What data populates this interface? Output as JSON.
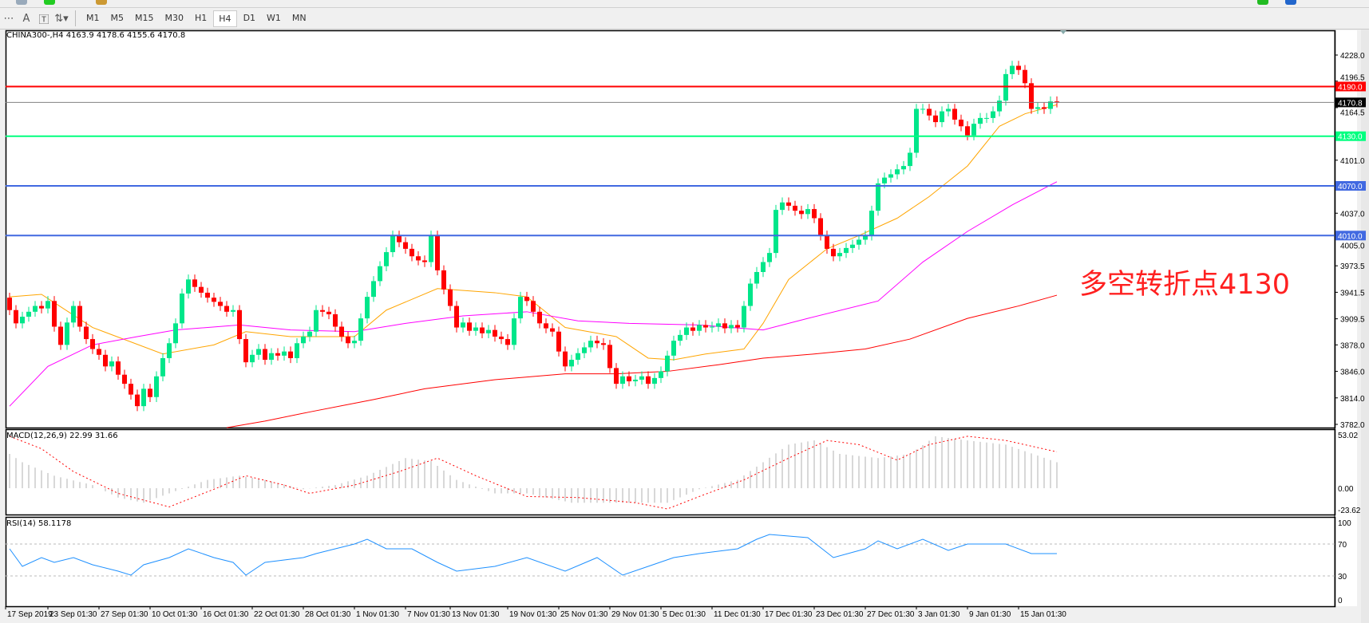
{
  "toolbar": {
    "tools": [
      "text-icon",
      "textbox-icon",
      "arrows-icon"
    ],
    "text_tool_label": "A",
    "timeframes": [
      "M1",
      "M5",
      "M15",
      "M30",
      "H1",
      "H4",
      "D1",
      "W1",
      "MN"
    ],
    "active_timeframe": "H4"
  },
  "chart_data": [
    {
      "type": "candlestick",
      "title": "CHINA300-,H4  4163.9 4178.6 4155.6 4170.8",
      "symbol": "CHINA300-",
      "timeframe": "H4",
      "last_ohlc": {
        "open": 4163.9,
        "high": 4178.6,
        "low": 4155.6,
        "close": 4170.8
      },
      "ylim": [
        3782.0,
        4228.0
      ],
      "y_ticks": [
        "4228.0",
        "4196.5",
        "4164.5",
        "4101.0",
        "4037.0",
        "4005.0",
        "3973.5",
        "3941.5",
        "3909.5",
        "3878.0",
        "3846.0",
        "3814.0",
        "3782.0"
      ],
      "x_tick_labels": [
        "17 Sep 2019",
        "23 Sep 01:30",
        "27 Sep 01:30",
        "10 Oct 01:30",
        "16 Oct 01:30",
        "22 Oct 01:30",
        "28 Oct 01:30",
        "1 Nov 01:30",
        "7 Nov 01:30",
        "13 Nov 01:30",
        "19 Nov 01:30",
        "25 Nov 01:30",
        "29 Nov 01:30",
        "5 Dec 01:30",
        "11 Dec 01:30",
        "17 Dec 01:30",
        "23 Dec 01:30",
        "27 Dec 01:30",
        "3 Jan 01:30",
        "9 Jan 01:30",
        "15 Jan 01:30"
      ],
      "first_open": 3935,
      "close": [
        3920,
        3904,
        3912,
        3918,
        3925,
        3922,
        3931,
        3900,
        3878,
        3905,
        3925,
        3900,
        3885,
        3873,
        3866,
        3852,
        3858,
        3842,
        3831,
        3818,
        3804,
        3825,
        3815,
        3840,
        3862,
        3880,
        3904,
        3940,
        3957,
        3948,
        3941,
        3935,
        3930,
        3925,
        3918,
        3920,
        3885,
        3857,
        3866,
        3873,
        3860,
        3868,
        3865,
        3870,
        3862,
        3880,
        3888,
        3894,
        3920,
        3918,
        3915,
        3900,
        3888,
        3880,
        3883,
        3910,
        3936,
        3955,
        3973,
        3990,
        4010,
        4002,
        3994,
        3985,
        3980,
        3978,
        4010,
        3968,
        3945,
        3925,
        3899,
        3905,
        3895,
        3899,
        3892,
        3896,
        3888,
        3885,
        3878,
        3910,
        3936,
        3931,
        3918,
        3904,
        3898,
        3894,
        3870,
        3852,
        3860,
        3868,
        3875,
        3883,
        3880,
        3878,
        3850,
        3831,
        3840,
        3834,
        3836,
        3840,
        3831,
        3838,
        3846,
        3865,
        3883,
        3890,
        3899,
        3895,
        3902,
        3899,
        3900,
        3904,
        3898,
        3902,
        3899,
        3925,
        3952,
        3966,
        3978,
        3989,
        4041,
        4050,
        4046,
        4040,
        4036,
        4042,
        4031,
        4010,
        3994,
        3985,
        3989,
        3995,
        3999,
        4005,
        4010,
        4040,
        4073,
        4080,
        4084,
        4090,
        4094,
        4110,
        4163,
        4163,
        4155,
        4147,
        4160,
        4163,
        4150,
        4142,
        4131,
        4145,
        4152,
        4152,
        4160,
        4173,
        4205,
        4215,
        4210,
        4194,
        4163,
        4165,
        4163,
        4172,
        4170.8
      ],
      "bull_color": "#00e68a",
      "bear_color": "#ff0000",
      "moving_averages": [
        {
          "color": "#ffa500",
          "points": [
            [
              0,
              3936
            ],
            [
              5,
              3939
            ],
            [
              13,
              3899
            ],
            [
              24,
              3867
            ],
            [
              32,
              3878
            ],
            [
              37,
              3894
            ],
            [
              44,
              3888
            ],
            [
              54,
              3888
            ],
            [
              59,
              3920
            ],
            [
              67,
              3946
            ],
            [
              76,
              3941
            ],
            [
              81,
              3936
            ],
            [
              87,
              3899
            ],
            [
              95,
              3888
            ],
            [
              100,
              3862
            ],
            [
              104,
              3860
            ],
            [
              109,
              3867
            ],
            [
              115,
              3873
            ],
            [
              118,
              3904
            ],
            [
              122,
              3957
            ],
            [
              128,
              3994
            ],
            [
              133,
              4010
            ],
            [
              139,
              4031
            ],
            [
              144,
              4057
            ],
            [
              150,
              4094
            ],
            [
              155,
              4142
            ],
            [
              159,
              4157
            ],
            [
              164,
              4168
            ]
          ]
        },
        {
          "color": "#ff00ff",
          "points": [
            [
              0,
              3804
            ],
            [
              6,
              3852
            ],
            [
              13,
              3878
            ],
            [
              20,
              3888
            ],
            [
              26,
              3896
            ],
            [
              36,
              3902
            ],
            [
              44,
              3896
            ],
            [
              54,
              3894
            ],
            [
              62,
              3904
            ],
            [
              71,
              3913
            ],
            [
              81,
              3918
            ],
            [
              89,
              3907
            ],
            [
              97,
              3904
            ],
            [
              108,
              3902
            ],
            [
              118,
              3896
            ],
            [
              125,
              3910
            ],
            [
              136,
              3931
            ],
            [
              143,
              3978
            ],
            [
              150,
              4015
            ],
            [
              157,
              4047
            ],
            [
              164,
              4075
            ]
          ]
        },
        {
          "color": "#ff0000",
          "points": [
            [
              34,
              3778
            ],
            [
              40,
              3786
            ],
            [
              47,
              3797
            ],
            [
              57,
              3812
            ],
            [
              65,
              3825
            ],
            [
              76,
              3836
            ],
            [
              87,
              3843
            ],
            [
              95,
              3843
            ],
            [
              103,
              3846
            ],
            [
              111,
              3854
            ],
            [
              118,
              3862
            ],
            [
              126,
              3867
            ],
            [
              134,
              3873
            ],
            [
              141,
              3885
            ],
            [
              150,
              3910
            ],
            [
              158,
              3925
            ],
            [
              164,
              3938
            ]
          ]
        }
      ],
      "horizontal_lines": [
        {
          "price": 4190.0,
          "label": "4190.0",
          "color": "#ff0000"
        },
        {
          "price": 4170.8,
          "label": "4170.8",
          "color": "#808080",
          "label_bg": "#000000"
        },
        {
          "price": 4130.0,
          "label": "4130.0",
          "color": "#00ff7f"
        },
        {
          "price": 4070.0,
          "label": "4070.0",
          "color": "#4169e1"
        },
        {
          "price": 4010.0,
          "label": "4010.0",
          "color": "#4169e1"
        }
      ],
      "annotation": "多空转折点4130"
    },
    {
      "type": "bar+line",
      "title": "MACD(12,26,9) 22.99 31.66",
      "ylim": [
        -23.62,
        53.02
      ],
      "y_ticks": [
        "53.02",
        "0.00",
        "-23.62"
      ],
      "histogram_color": "#b0b0b0",
      "signal_color": "#ff0000",
      "histogram_points": [
        [
          0,
          33
        ],
        [
          2,
          25
        ],
        [
          7,
          12
        ],
        [
          13,
          3
        ],
        [
          17,
          -9
        ],
        [
          21,
          -14
        ],
        [
          25,
          -5
        ],
        [
          31,
          8
        ],
        [
          36,
          12
        ],
        [
          40,
          8
        ],
        [
          46,
          -1
        ],
        [
          51,
          3
        ],
        [
          56,
          12
        ],
        [
          62,
          29
        ],
        [
          66,
          26
        ],
        [
          70,
          8
        ],
        [
          76,
          -5
        ],
        [
          81,
          -5
        ],
        [
          88,
          -14
        ],
        [
          95,
          -14
        ],
        [
          103,
          -14
        ],
        [
          108,
          -1
        ],
        [
          114,
          8
        ],
        [
          118,
          25
        ],
        [
          122,
          42
        ],
        [
          126,
          46
        ],
        [
          130,
          33
        ],
        [
          136,
          29
        ],
        [
          141,
          33
        ],
        [
          145,
          50
        ],
        [
          150,
          46
        ],
        [
          156,
          42
        ],
        [
          164,
          25
        ]
      ],
      "signal_points": [
        [
          0,
          50
        ],
        [
          5,
          38
        ],
        [
          10,
          16
        ],
        [
          17,
          -5
        ],
        [
          25,
          -18
        ],
        [
          32,
          -1
        ],
        [
          37,
          12
        ],
        [
          43,
          3
        ],
        [
          47,
          -5
        ],
        [
          54,
          3
        ],
        [
          61,
          16
        ],
        [
          67,
          29
        ],
        [
          73,
          12
        ],
        [
          81,
          -8
        ],
        [
          89,
          -9
        ],
        [
          98,
          -14
        ],
        [
          103,
          -20
        ],
        [
          108,
          -8
        ],
        [
          115,
          8
        ],
        [
          122,
          29
        ],
        [
          128,
          46
        ],
        [
          133,
          42
        ],
        [
          139,
          27
        ],
        [
          144,
          42
        ],
        [
          150,
          50
        ],
        [
          156,
          46
        ],
        [
          164,
          35
        ]
      ]
    },
    {
      "type": "line",
      "title": "RSI(14) 58.1178",
      "ylim": [
        0,
        100
      ],
      "y_ticks": [
        "100",
        "70",
        "30",
        "0"
      ],
      "levels": [
        70,
        30
      ],
      "color": "#1e90ff",
      "points": [
        [
          0,
          64
        ],
        [
          2,
          42
        ],
        [
          5,
          53
        ],
        [
          7,
          47
        ],
        [
          10,
          53
        ],
        [
          13,
          44
        ],
        [
          17,
          36
        ],
        [
          19,
          31
        ],
        [
          21,
          44
        ],
        [
          25,
          53
        ],
        [
          28,
          64
        ],
        [
          32,
          53
        ],
        [
          35,
          47
        ],
        [
          37,
          31
        ],
        [
          40,
          47
        ],
        [
          46,
          53
        ],
        [
          48,
          58
        ],
        [
          54,
          70
        ],
        [
          56,
          76
        ],
        [
          59,
          64
        ],
        [
          63,
          64
        ],
        [
          67,
          47
        ],
        [
          70,
          36
        ],
        [
          76,
          42
        ],
        [
          81,
          53
        ],
        [
          87,
          36
        ],
        [
          92,
          53
        ],
        [
          96,
          31
        ],
        [
          100,
          42
        ],
        [
          104,
          53
        ],
        [
          108,
          58
        ],
        [
          114,
          64
        ],
        [
          117,
          76
        ],
        [
          119,
          82
        ],
        [
          125,
          78
        ],
        [
          129,
          53
        ],
        [
          134,
          64
        ],
        [
          136,
          74
        ],
        [
          139,
          64
        ],
        [
          143,
          76
        ],
        [
          147,
          62
        ],
        [
          150,
          70
        ],
        [
          156,
          70
        ],
        [
          160,
          58
        ],
        [
          164,
          58
        ]
      ]
    }
  ]
}
